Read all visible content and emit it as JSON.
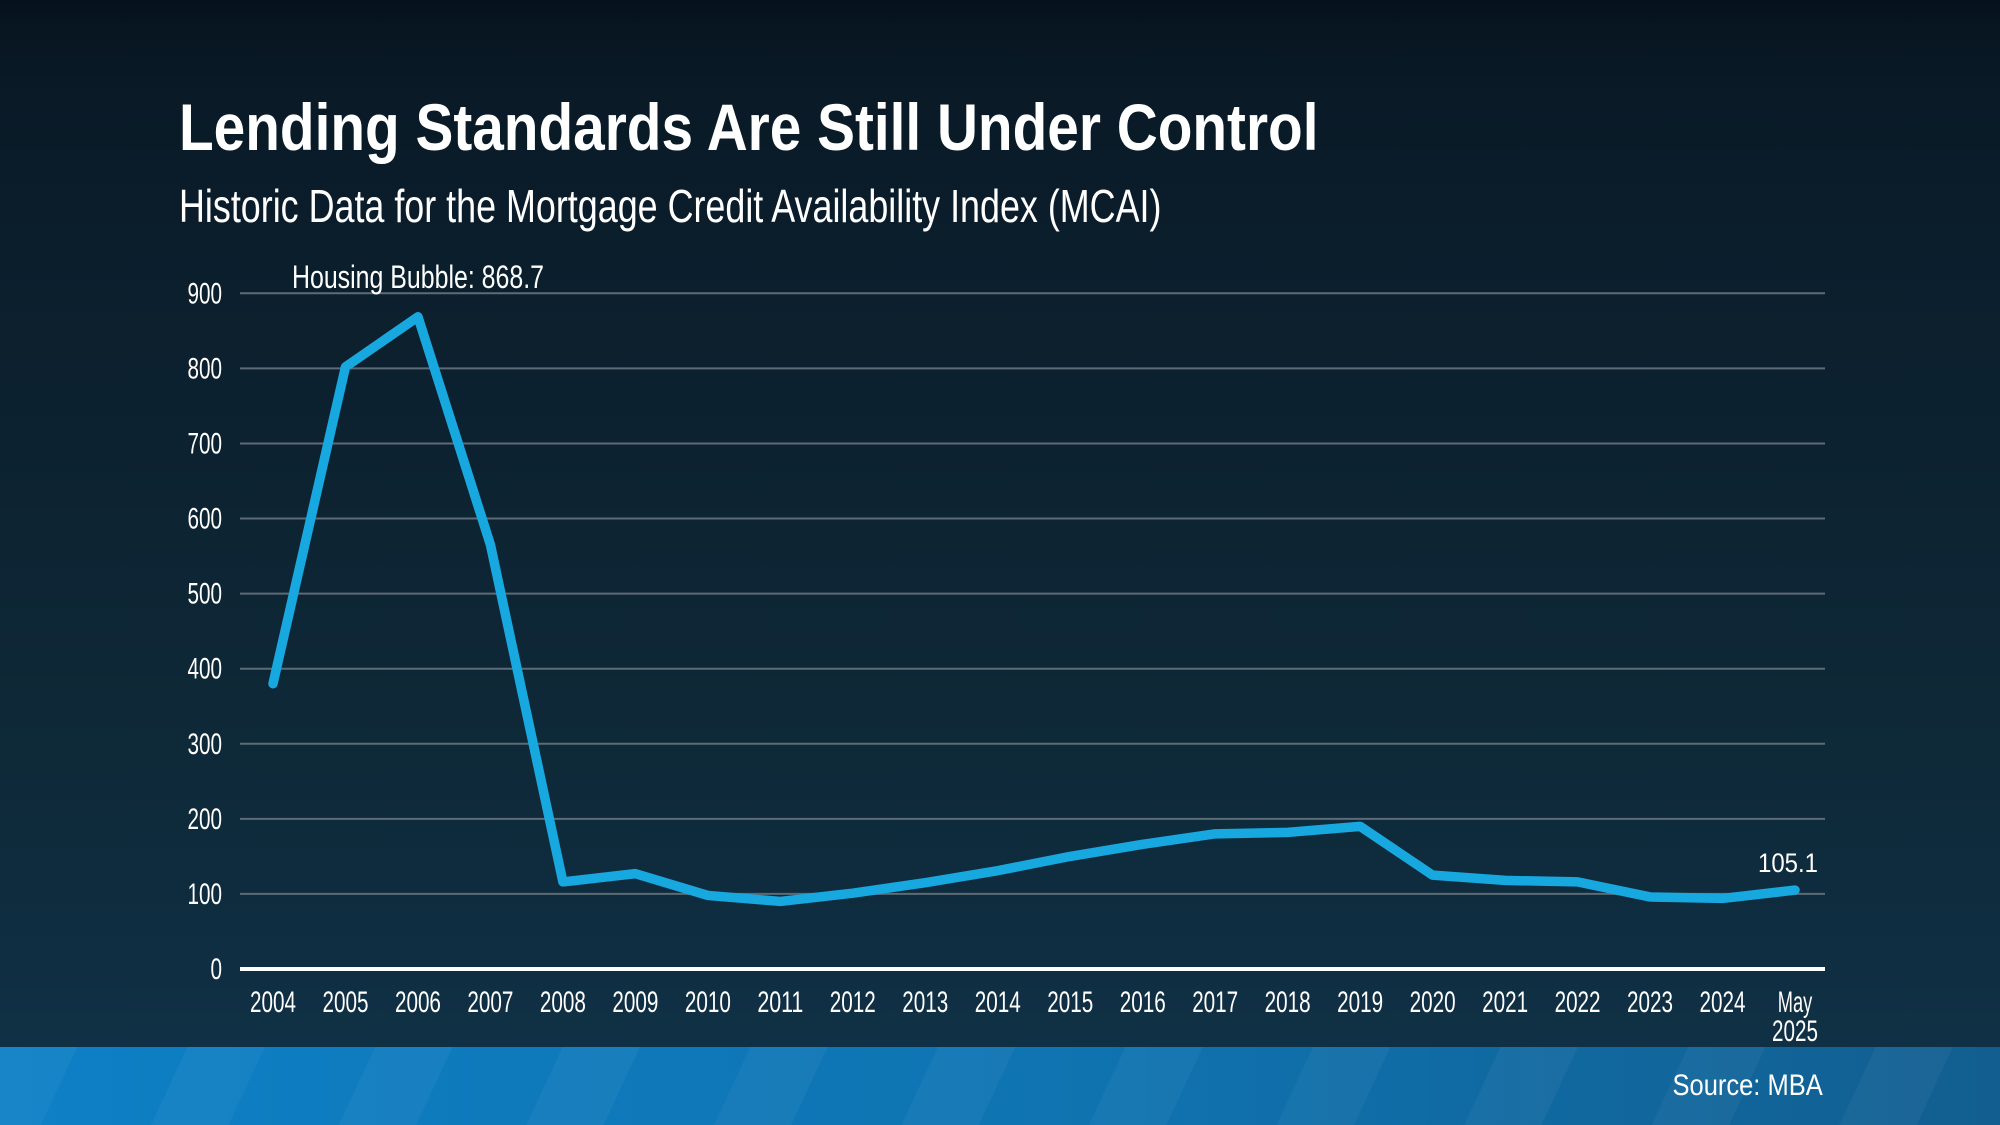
{
  "header": {
    "title": "Lending Standards Are Still Under Control",
    "subtitle": "Historic Data for the Mortgage Credit Availability Index (MCAI)"
  },
  "footer": {
    "source_label": "Source: MBA"
  },
  "colors": {
    "background_top": "#071621",
    "background_bottom": "#113349",
    "line": "#18a8e0",
    "grid": "#5d6b76",
    "axis": "#ffffff",
    "text": "#ffffff",
    "bar_left": "#0e80c6",
    "bar_right": "#125e90"
  },
  "chart_data": {
    "type": "line",
    "title": "Historic Data for the Mortgage Credit Availability Index (MCAI)",
    "xlabel": "",
    "ylabel": "",
    "categories": [
      "2004",
      "2005",
      "2006",
      "2007",
      "2008",
      "2009",
      "2010",
      "2011",
      "2012",
      "2013",
      "2014",
      "2015",
      "2016",
      "2017",
      "2018",
      "2019",
      "2020",
      "2021",
      "2022",
      "2023",
      "2024",
      "May 2025"
    ],
    "values": [
      380,
      802,
      868.7,
      565,
      116,
      127,
      98,
      90,
      101,
      115,
      131,
      150,
      166,
      180,
      182,
      190,
      125,
      118,
      116,
      96,
      94,
      105.1
    ],
    "ylim": [
      0,
      900
    ],
    "ytick_step": 100,
    "grid": true,
    "legend": false,
    "line_color": "#18a8e0",
    "annotations": [
      {
        "text": "Housing Bubble: 868.7",
        "target": "peak"
      },
      {
        "text": "105.1",
        "target": "last"
      }
    ]
  }
}
